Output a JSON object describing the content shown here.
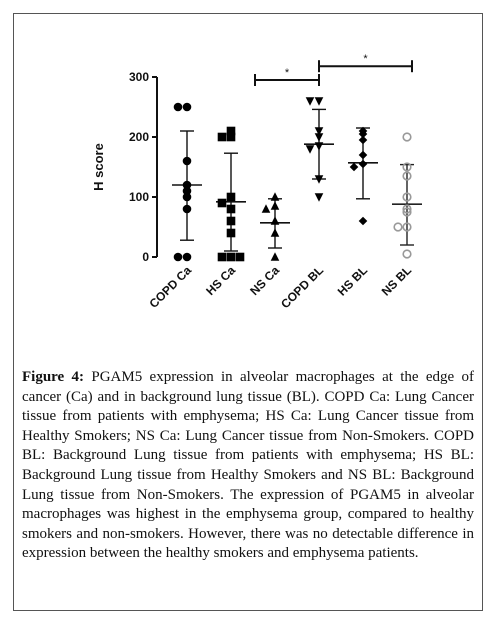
{
  "chart_data": {
    "type": "scatter",
    "ylabel": "H score",
    "xlabel": "",
    "ylim": [
      0,
      300
    ],
    "yticks": [
      0,
      100,
      200,
      300
    ],
    "grid": false,
    "categories": [
      "COPD Ca",
      "HS Ca",
      "NS Ca",
      "COPD BL",
      "HS BL",
      "NS BL"
    ],
    "groups": [
      {
        "category": "COPD Ca",
        "marker": "circle-filled",
        "color": "#000000",
        "points": [
          250,
          250,
          160,
          120,
          110,
          100,
          80,
          0,
          0
        ],
        "mean": 120,
        "sd_low": 28,
        "sd_high": 210
      },
      {
        "category": "HS Ca",
        "marker": "square-filled",
        "color": "#000000",
        "points": [
          210,
          200,
          200,
          100,
          90,
          80,
          60,
          40,
          0,
          0,
          0
        ],
        "mean": 92,
        "sd_low": 10,
        "sd_high": 173
      },
      {
        "category": "NS Ca",
        "marker": "triangle-up-filled",
        "color": "#000000",
        "points": [
          100,
          85,
          80,
          60,
          40,
          0
        ],
        "mean": 57,
        "sd_low": 15,
        "sd_high": 97
      },
      {
        "category": "COPD BL",
        "marker": "triangle-down-filled",
        "color": "#000000",
        "points": [
          260,
          260,
          210,
          200,
          185,
          180,
          130,
          100
        ],
        "mean": 188,
        "sd_low": 130,
        "sd_high": 246
      },
      {
        "category": "HS BL",
        "marker": "diamond-filled",
        "color": "#000000",
        "points": [
          210,
          205,
          195,
          170,
          155,
          150,
          60
        ],
        "mean": 157,
        "sd_low": 97,
        "sd_high": 215
      },
      {
        "category": "NS BL",
        "marker": "circle-open",
        "color": "#999999",
        "points": [
          200,
          150,
          135,
          100,
          80,
          75,
          50,
          50,
          5
        ],
        "mean": 88,
        "sd_low": 20,
        "sd_high": 154
      }
    ],
    "significance": [
      {
        "from": "NS Ca",
        "to": "COPD BL",
        "label": "*",
        "y": 295
      },
      {
        "from": "COPD BL",
        "to": "NS BL",
        "label": "*",
        "y": 318
      }
    ]
  },
  "caption": {
    "label": "Figure 4:",
    "text": " PGAM5 expression in alveolar macrophages at the edge of cancer (Ca) and in background lung tissue (BL). COPD Ca: Lung Cancer tissue from patients with emphysema; HS Ca: Lung Cancer tissue from Healthy Smokers; NS Ca: Lung Cancer tissue from Non-Smokers. COPD BL: Background Lung tissue from patients with emphysema; HS BL: Background Lung tissue from Healthy Smokers and NS BL: Background Lung tissue from Non-Smokers. The expression of PGAM5 in alveolar macrophages was highest in the emphysema group, compared to healthy smokers and non-smokers. However, there was no detectable difference in expression between the healthy smokers and emphysema patients."
  }
}
